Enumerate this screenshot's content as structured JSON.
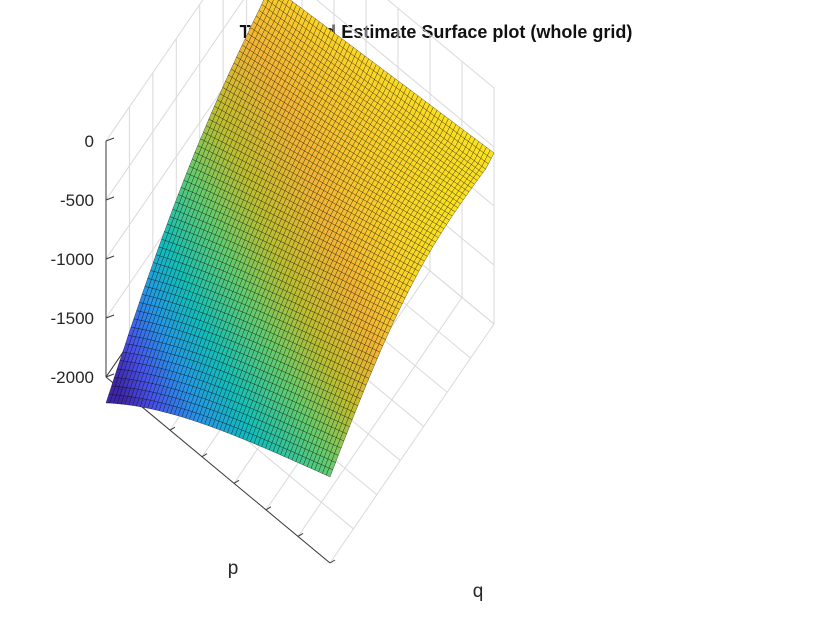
{
  "chart_data": {
    "type": "surface",
    "title": "Two-Period Estimate Surface plot (whole grid)",
    "xlabel": "q",
    "ylabel": "p",
    "zlabel": "",
    "z_ticks": [
      0,
      -500,
      -1000,
      -1500,
      -2000
    ],
    "zlim": [
      -2000,
      0
    ],
    "grid": true,
    "colormap": "parula",
    "surface_summary": {
      "z_at_far_right_corner": -550,
      "z_at_left_corner": -700,
      "z_at_right_corner": -1270,
      "z_at_front_corner": -2000,
      "grid_size": [
        60,
        60
      ]
    }
  }
}
